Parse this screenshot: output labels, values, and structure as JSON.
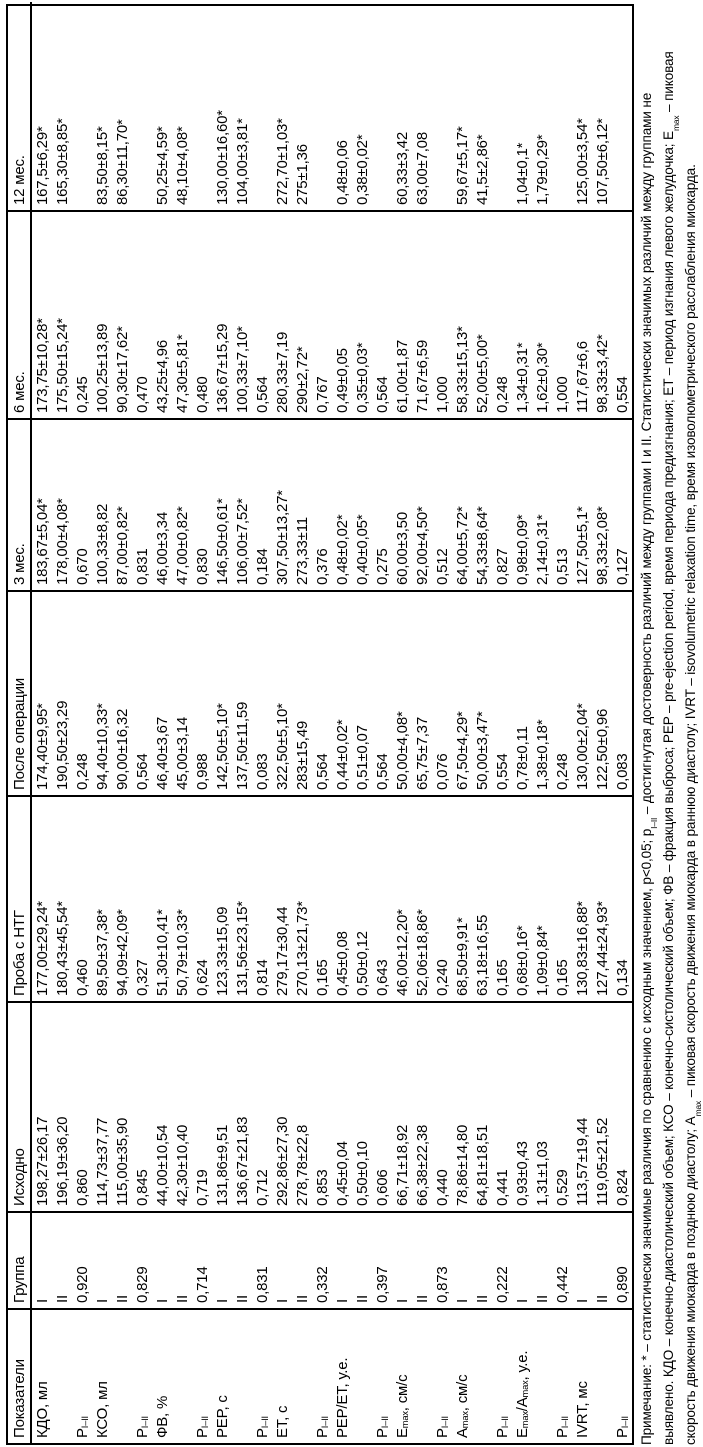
{
  "table": {
    "columns": [
      "Показатели",
      "Группа",
      "Исходно",
      "Проба с НТГ",
      "После операции",
      "3 мес.",
      "6 мес.",
      "12 мес."
    ],
    "rows": [
      [
        "КДО, мл",
        "I",
        "198,27±26,17",
        "177,00±29,24*",
        "174,40±9,95*",
        "183,67±5,04*",
        "173,75±10,28*",
        "167,5±6,29*"
      ],
      [
        "",
        "II",
        "196,19±36,20",
        "180,43±45,54*",
        "190,50±23,29",
        "178,00±4,08*",
        "175,50±15,24*",
        "165,30±8,85*"
      ],
      [
        "Р_{I–II}",
        "0,920",
        "0,860",
        "0,460",
        "0,248",
        "0,670",
        "0,245",
        ""
      ],
      [
        "КСО, мл",
        "I",
        "114,73±37,77",
        "89,50±37,38*",
        "94,40±10,33*",
        "100,33±8,82",
        "100,25±13,89",
        "83,50±8,15*"
      ],
      [
        "",
        "II",
        "115,00±35,90",
        "94,09±42,09*",
        "90,00±16,32",
        "87,00±0,82*",
        "90,30±17,62*",
        "86,30±11,70*"
      ],
      [
        "Р_{I–II}",
        "0,829",
        "0,845",
        "0,327",
        "0,564",
        "0,831",
        "0,470",
        ""
      ],
      [
        "ФВ, %",
        "I",
        "44,00±10,54",
        "51,30±10,41*",
        "46,40±3,67",
        "46,00±3,34",
        "43,25±4,96",
        "50,25±4,59*"
      ],
      [
        "",
        "II",
        "42,30±10,40",
        "50,79±10,33*",
        "45,00±3,14",
        "47,00±0,82*",
        "47,30±5,81*",
        "48,10±4,08*"
      ],
      [
        "Р_{I–II}",
        "0,714",
        "0,719",
        "0,624",
        "0,988",
        "0,830",
        "0,480",
        ""
      ],
      [
        "PEP, с",
        "I",
        "131,86±9,51",
        "123,33±15,09",
        "142,50±5,10*",
        "146,50±0,61*",
        "136,67±15,29",
        "130,00±16,60*"
      ],
      [
        "",
        "II",
        "136,67±21,83",
        "131,56±23,15*",
        "137,50±11,59",
        "106,00±7,52*",
        "100,33±7,10*",
        "104,00±3,81*"
      ],
      [
        "Р_{I–II}",
        "0,831",
        "0,712",
        "0,814",
        "0,083",
        "0,184",
        "0,564",
        ""
      ],
      [
        "ET, с",
        "I",
        "292,86±27,30",
        "279,17±30,44",
        "322,50±5,10*",
        "307,50±13,27*",
        "280,33±7,19",
        "272,70±1,03*"
      ],
      [
        "",
        "II",
        "278,78±22,8",
        "270,13±21,73*",
        "283±15,49",
        "273,33±11",
        "290±2,72*",
        "275±1,36"
      ],
      [
        "Р_{I–II}",
        "0,332",
        "0,853",
        "0,165",
        "0,564",
        "0,376",
        "0,767",
        ""
      ],
      [
        "PEP/ET, у.е.",
        "I",
        "0,45±0,04",
        "0,45±0,08",
        "0,44±0,02*",
        "0,48±0,02*",
        "0,49±0,05",
        "0,48±0,06"
      ],
      [
        "",
        "II",
        "0,50±0,10",
        "0,50±0,12",
        "0,51±0,07",
        "0,40±0,05*",
        "0,35±0,03*",
        "0,38±0,02*"
      ],
      [
        "Р_{I–II}",
        "0,397",
        "0,606",
        "0,643",
        "0,564",
        "0,275",
        "0,564",
        ""
      ],
      [
        "Е_{max}, см/с",
        "I",
        "66,71±18,92",
        "46,00±12,20*",
        "50,00±4,08*",
        "60,00±3,50",
        "61,00±1,87",
        "60,33±3,42"
      ],
      [
        "",
        "II",
        "66,38±22,38",
        "52,06±18,86*",
        "65,75±7,37",
        "92,00±4,50*",
        "71,67±6,59",
        "63,00±7,08"
      ],
      [
        "Р_{I–II}",
        "0,873",
        "0,440",
        "0,240",
        "0,076",
        "0,512",
        "1,000",
        ""
      ],
      [
        "А_{max}, см/с",
        "I",
        "78,86±14,80",
        "68,50±9,91*",
        "67,50±4,29*",
        "64,00±5,72*",
        "58,33±15,13*",
        "59,67±5,17*"
      ],
      [
        "",
        "II",
        "64,81±18,51",
        "63,18±16,55",
        "50,00±3,47*",
        "54,33±8,64*",
        "52,00±5,00*",
        "41,5±2,86*"
      ],
      [
        "Р_{I–II}",
        "0,222",
        "0,441",
        "0,165",
        "0,554",
        "0,827",
        "0,248",
        ""
      ],
      [
        "Е_{max}/А_{max}, у.е.",
        "I",
        "0,93±0,43",
        "0,68±0,16*",
        "0,78±0,11",
        "0,98±0,09*",
        "1,34±0,31*",
        "1,04±0,1*"
      ],
      [
        "",
        "II",
        "1,31±1,03",
        "1,09±0,84*",
        "1,38±0,18*",
        "2,14±0,31*",
        "1,62±0,30*",
        "1,79±0,29*"
      ],
      [
        "Р_{I–II}",
        "0,442",
        "0,529",
        "0,165",
        "0,248",
        "0,513",
        "1,000",
        ""
      ],
      [
        "IVRT, мс",
        "I",
        "113,57±19,44",
        "130,83±16,88*",
        "130,00±2,04*",
        "127,50±5,1*",
        "117,67±6,6",
        "125,00±3,54*"
      ],
      [
        "",
        "II",
        "119,05±21,52",
        "127,44±24,93*",
        "122,50±0,96",
        "98,33±2,08*",
        "98,33±3,42*",
        "107,50±6,12*"
      ],
      [
        "Р_{I–II}",
        "0,890",
        "0,824",
        "0,134",
        "0,083",
        "0,127",
        "0,554",
        ""
      ]
    ]
  },
  "note": {
    "lines": [
      "Примечание: * – статистически значимые различия по сравнению с исходным значением, p<0,05; р_{I–II} – достигнутая достоверность различий между группами I и II. Статистически значимых различий между группами не",
      "выявлено. КДО – конечно-диастолический объем; КСО – конечно-систолический объем; ФВ – фракция выброса; PEP – pre-ejection period, время периода предизгнания; ET – период изгнания левого желудочка; Е_{max} – пиковая",
      "скорость движения миокарда в позднюю диастолу; А_{max} – пиковая скорость движения миокарда в раннюю диастолу; IVRT – isovolumetric relaxation time, время изоволюметрического расслабления миокарда."
    ]
  },
  "colors": {
    "ink": "#000000",
    "paper": "#ffffff"
  }
}
